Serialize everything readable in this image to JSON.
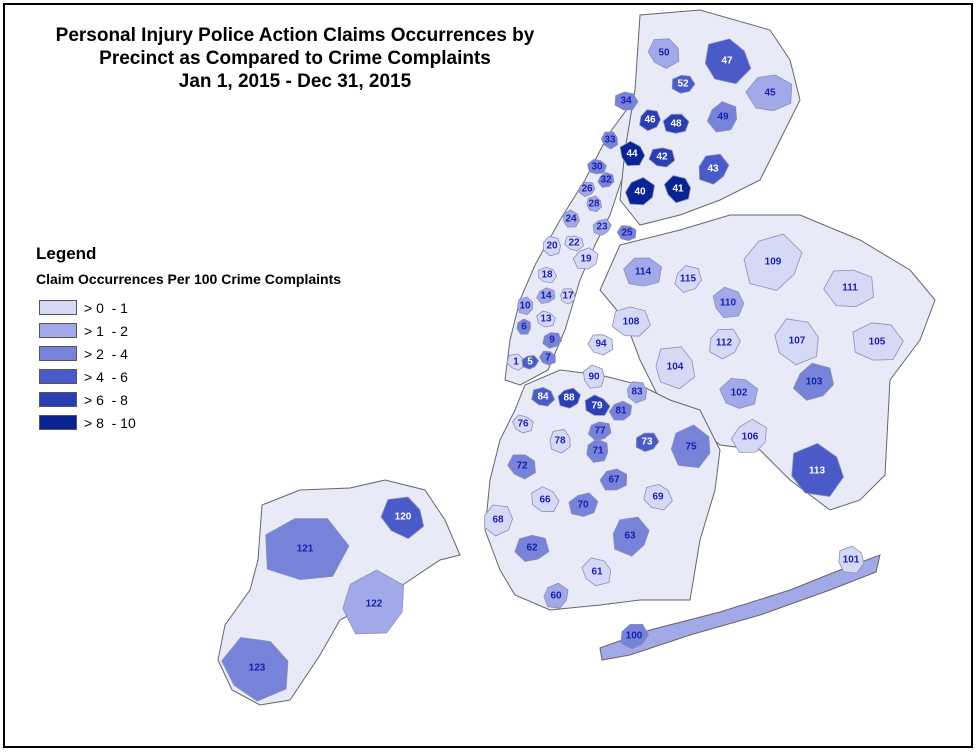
{
  "title": {
    "line1": "Personal Injury Police Action Claims Occurrences by",
    "line2": "Precinct as Compared to Crime Complaints",
    "line3": "Jan 1, 2015 - Dec 31, 2015"
  },
  "legend": {
    "title": "Legend",
    "subtitle": "Claim Occurrences Per 100 Crime Complaints",
    "classes": [
      {
        "label": "> 0  - 1",
        "color": "#d6d9f5"
      },
      {
        "label": "> 1  - 2",
        "color": "#a2a9e8"
      },
      {
        "label": "> 2  - 4",
        "color": "#7783d8"
      },
      {
        "label": "> 4  - 6",
        "color": "#4a5ac8"
      },
      {
        "label": "> 6  - 8",
        "color": "#2b3eb2"
      },
      {
        "label": "> 8  - 10",
        "color": "#0a2393"
      }
    ]
  },
  "precincts": [
    {
      "id": "1",
      "class": 1
    },
    {
      "id": "5",
      "class": 4
    },
    {
      "id": "6",
      "class": 3
    },
    {
      "id": "7",
      "class": 3
    },
    {
      "id": "9",
      "class": 3
    },
    {
      "id": "10",
      "class": 2
    },
    {
      "id": "13",
      "class": 1
    },
    {
      "id": "14",
      "class": 2
    },
    {
      "id": "17",
      "class": 1
    },
    {
      "id": "18",
      "class": 1
    },
    {
      "id": "19",
      "class": 1
    },
    {
      "id": "20",
      "class": 1
    },
    {
      "id": "22",
      "class": 1
    },
    {
      "id": "23",
      "class": 2
    },
    {
      "id": "24",
      "class": 2
    },
    {
      "id": "25",
      "class": 3
    },
    {
      "id": "26",
      "class": 2
    },
    {
      "id": "28",
      "class": 2
    },
    {
      "id": "30",
      "class": 3
    },
    {
      "id": "32",
      "class": 3
    },
    {
      "id": "33",
      "class": 3
    },
    {
      "id": "34",
      "class": 3
    },
    {
      "id": "40",
      "class": 6
    },
    {
      "id": "41",
      "class": 6
    },
    {
      "id": "42",
      "class": 5
    },
    {
      "id": "43",
      "class": 4
    },
    {
      "id": "44",
      "class": 6
    },
    {
      "id": "45",
      "class": 2
    },
    {
      "id": "46",
      "class": 5
    },
    {
      "id": "47",
      "class": 4
    },
    {
      "id": "48",
      "class": 5
    },
    {
      "id": "49",
      "class": 3
    },
    {
      "id": "50",
      "class": 2
    },
    {
      "id": "52",
      "class": 4
    },
    {
      "id": "60",
      "class": 2
    },
    {
      "id": "61",
      "class": 1
    },
    {
      "id": "62",
      "class": 3
    },
    {
      "id": "63",
      "class": 3
    },
    {
      "id": "66",
      "class": 1
    },
    {
      "id": "67",
      "class": 3
    },
    {
      "id": "68",
      "class": 1
    },
    {
      "id": "69",
      "class": 1
    },
    {
      "id": "70",
      "class": 3
    },
    {
      "id": "71",
      "class": 3
    },
    {
      "id": "72",
      "class": 3
    },
    {
      "id": "73",
      "class": 4
    },
    {
      "id": "75",
      "class": 3
    },
    {
      "id": "76",
      "class": 1
    },
    {
      "id": "77",
      "class": 3
    },
    {
      "id": "78",
      "class": 1
    },
    {
      "id": "79",
      "class": 5
    },
    {
      "id": "81",
      "class": 3
    },
    {
      "id": "83",
      "class": 2
    },
    {
      "id": "84",
      "class": 4
    },
    {
      "id": "88",
      "class": 5
    },
    {
      "id": "90",
      "class": 1
    },
    {
      "id": "94",
      "class": 1
    },
    {
      "id": "100",
      "class": 3
    },
    {
      "id": "101",
      "class": 1
    },
    {
      "id": "102",
      "class": 2
    },
    {
      "id": "103",
      "class": 3
    },
    {
      "id": "104",
      "class": 1
    },
    {
      "id": "105",
      "class": 1
    },
    {
      "id": "106",
      "class": 1
    },
    {
      "id": "107",
      "class": 1
    },
    {
      "id": "108",
      "class": 1
    },
    {
      "id": "109",
      "class": 1
    },
    {
      "id": "110",
      "class": 2
    },
    {
      "id": "111",
      "class": 1
    },
    {
      "id": "112",
      "class": 1
    },
    {
      "id": "113",
      "class": 4
    },
    {
      "id": "114",
      "class": 2
    },
    {
      "id": "115",
      "class": 1
    },
    {
      "id": "120",
      "class": 4
    },
    {
      "id": "121",
      "class": 3
    },
    {
      "id": "122",
      "class": 2
    },
    {
      "id": "123",
      "class": 3
    }
  ]
}
